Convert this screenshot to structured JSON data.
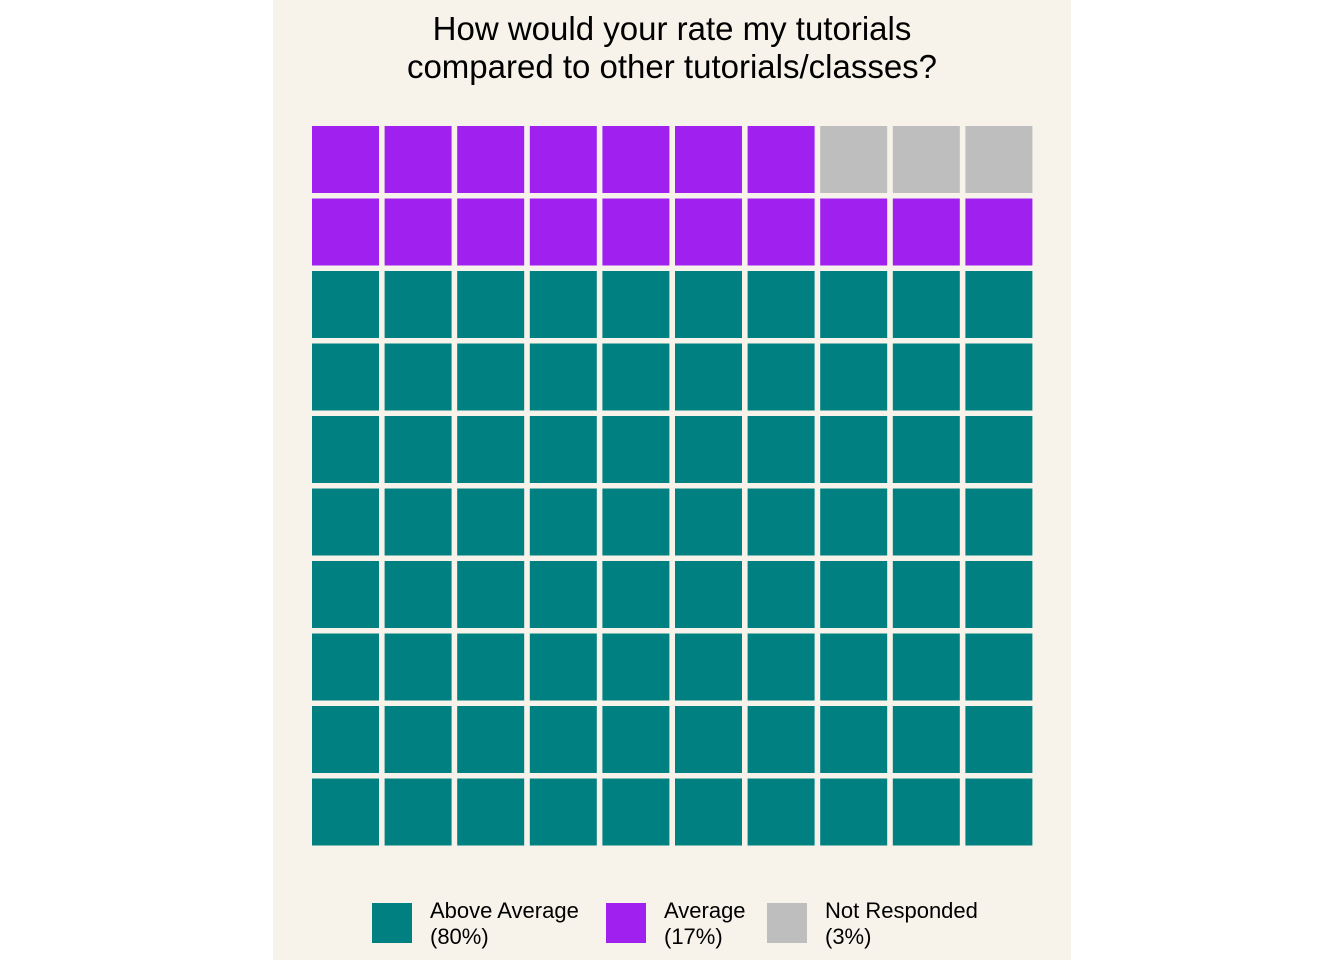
{
  "chart_data": {
    "type": "waffle",
    "title": "How would your rate my tutorials\ncompared to other tutorials/classes?",
    "grid": {
      "rows": 10,
      "cols": 10
    },
    "categories": [
      {
        "name": "Above Average",
        "percent_label": "(80%)",
        "value": 80,
        "color": "#008080"
      },
      {
        "name": "Average",
        "percent_label": "(17%)",
        "value": 17,
        "color": "#a020f0"
      },
      {
        "name": "Not Responded",
        "percent_label": "(3%)",
        "value": 3,
        "color": "#bebebe"
      }
    ],
    "fill_order": "bottom-to-top, left-to-right",
    "legend_position": "bottom",
    "background_color": "#f7f3ea"
  }
}
